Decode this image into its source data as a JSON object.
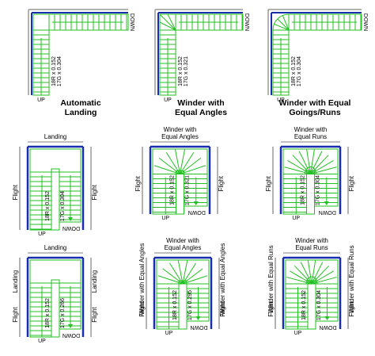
{
  "captions": [
    [
      "Automatic",
      "Landing"
    ],
    [
      "Winder with",
      "Equal Angles"
    ],
    [
      "Winder with Equal",
      "Goings/Runs"
    ]
  ],
  "l_stairs": [
    {
      "riser": "18R x 0.152",
      "going": "17G x 0.304",
      "up": "UP",
      "down": "DOWN"
    },
    {
      "riser": "18R x 0.152",
      "going": "17G x 0.321",
      "up": "UP",
      "down": "DOWN"
    },
    {
      "riser": "18R x 0.152",
      "going": "17G x 0.304",
      "up": "UP",
      "down": "DOWN"
    }
  ],
  "u_stairs": [
    {
      "top": [
        "Landing"
      ],
      "left": [
        "Flight"
      ],
      "right": [
        "Flight"
      ],
      "riser": "18R x 0.152",
      "going": "17G x 0.304",
      "up": "UP",
      "down": "DOWN"
    },
    {
      "top": [
        "Winder with",
        "Equal Angles"
      ],
      "left": [
        "Flight"
      ],
      "right": [
        "Flight"
      ],
      "riser": "18R x 0.152",
      "going": "17G x 0.321",
      "up": "UP",
      "down": "DOWN"
    },
    {
      "top": [
        "Winder with",
        "Equal Runs"
      ],
      "left": [
        "Flight"
      ],
      "right": [
        "Flight"
      ],
      "riser": "18R x 0.152",
      "going": "17G x 0.304",
      "up": "UP",
      "down": "DOWN"
    },
    {
      "top": [
        "Landing"
      ],
      "left": [
        "Landing",
        "Flight"
      ],
      "right": [
        "Landing",
        "Flight"
      ],
      "riser": "18R x 0.152",
      "going": "17G x 0.266",
      "up": "UP",
      "down": "DOWN"
    },
    {
      "top": [
        "Winder with",
        "Equal Angles"
      ],
      "left": [
        "Winder with Equal Angles",
        "Flight"
      ],
      "right": [
        "Winder with Equal Angles",
        "Flight"
      ],
      "riser": "18R x 0.152",
      "going": "17G x 0.295",
      "up": "UP",
      "down": "DOWN"
    },
    {
      "top": [
        "Winder with",
        "Equal Runs"
      ],
      "left": [
        "Winder with Equal Runs",
        "Flight"
      ],
      "right": [
        "Winder with Equal Runs",
        "Flight"
      ],
      "riser": "18R x 0.152",
      "going": "17G x 0.304",
      "up": "UP",
      "down": "DOWN"
    }
  ]
}
